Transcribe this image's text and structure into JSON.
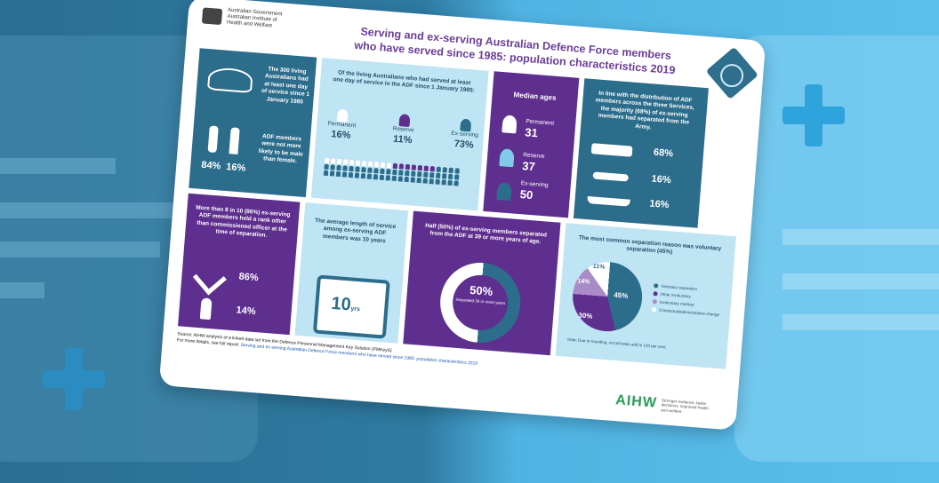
{
  "card": {
    "gov_lines": [
      "Australian Government",
      "Australian Institute of",
      "Health and Welfare"
    ],
    "title_line1": "Serving and ex-serving Australian Defence Force members",
    "title_line2": "who have served since 1985: population characteristics 2019"
  },
  "tile1": {
    "text1": "The 300 living Australians had at least one day of service since 1 January 1985",
    "text2": "ADF members were not more likely to be male than female.",
    "male_pct": "84%",
    "female_pct": "16%"
  },
  "tile2": {
    "text": "Of the living Australians who had served at least one day of service in the ADF since 1 January 1985:",
    "groups": [
      {
        "label": "Permanent",
        "pct": "16%"
      },
      {
        "label": "Reserve",
        "pct": "11%"
      },
      {
        "label": "Ex-serving",
        "pct": "73%"
      }
    ]
  },
  "tile3": {
    "heading": "Median ages",
    "items": [
      {
        "label": "Permanent",
        "value": "31"
      },
      {
        "label": "Reserve",
        "value": "37"
      },
      {
        "label": "Ex-serving",
        "value": "50"
      }
    ]
  },
  "tile4": {
    "text": "In line with the distribution of ADF members across the three Services, the majority (68%) of ex-serving members had separated from the Army.",
    "items": [
      {
        "name": "army",
        "pct": "68%"
      },
      {
        "name": "air-force",
        "pct": "16%"
      },
      {
        "name": "navy",
        "pct": "16%"
      }
    ]
  },
  "tile5": {
    "text": "More than 8 in 10 (86%) ex-serving ADF members held a rank other than commissioned officer at the time of separation.",
    "other_pct": "86%",
    "officer_pct": "14%"
  },
  "tile6": {
    "text": "The average length of service among ex-serving ADF members was 10 years",
    "years": "10",
    "unit": "yrs"
  },
  "tile7": {
    "text": "Half (50%) of ex-serving members separated from the ADF at 39 or more years of age.",
    "pct": "50%",
    "caption": "Separated 39 or more years"
  },
  "tile8": {
    "text": "The most common separation reason was voluntary separation (45%)",
    "slices": [
      {
        "label": "Voluntary separation",
        "pct": "45%",
        "color": "#2c6d8b"
      },
      {
        "label": "Other involuntary",
        "pct": "30%",
        "color": "#5f2f8f"
      },
      {
        "label": "Involuntary medical",
        "pct": "14%",
        "color": "#a98bc8"
      },
      {
        "label": "Contractual/administrative change",
        "pct": "11%",
        "color": "#ffffff"
      }
    ],
    "note": "Note: Due to rounding, not all totals add to 100 per cent."
  },
  "footnote": {
    "line1": "Source: AIHW analysis of a linked data set from the Defence Personnel Management Key Solution (PMKeyS)",
    "line2": "For more details, see full report:",
    "link": "Serving and ex-serving Australian Defence Force members who have served since 1985: population characteristics 2019"
  },
  "brand": {
    "logo": "AIHW",
    "tagline": "Stronger evidence, better decisions, improved health and welfare"
  },
  "colors": {
    "teal": "#2c6d8b",
    "purple": "#5f2f8f",
    "light_blue": "#bfe4f4",
    "green": "#2a9c58"
  }
}
